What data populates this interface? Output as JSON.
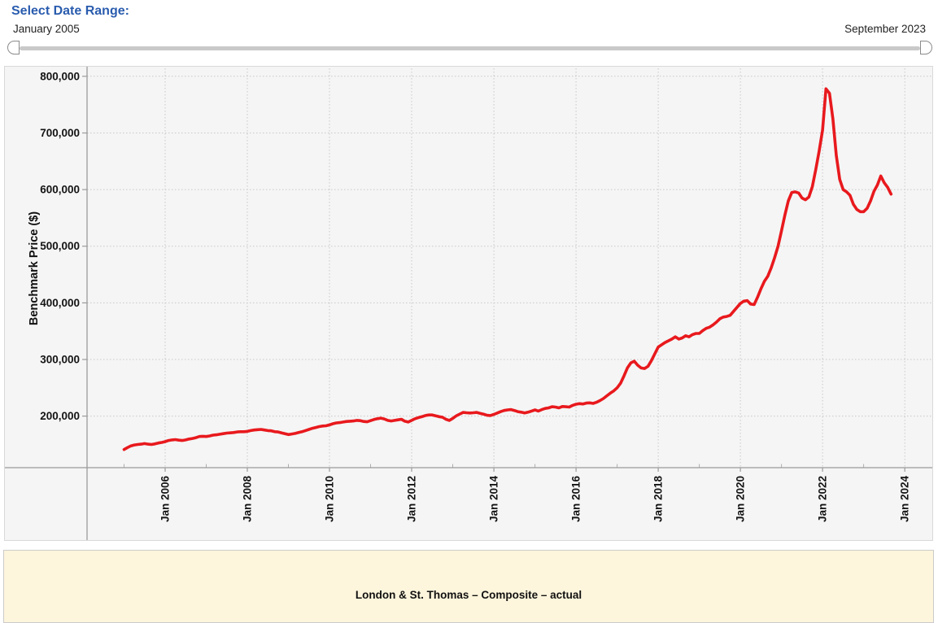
{
  "controls": {
    "title": "Select Date Range:",
    "range_start": "January 2005",
    "range_end": "September 2023"
  },
  "legend": {
    "label": "London & St. Thomas – Composite – actual"
  },
  "colors": {
    "accent_blue": "#2a5cae",
    "line_red": "#e8191d",
    "widget_bg": "#f5f5f5",
    "legend_bg": "#fdf5dc",
    "axis": "#9b9b9b",
    "grid": "#c8c8c8",
    "tick_label": "#141414"
  },
  "chart_data": {
    "type": "line",
    "title": "",
    "xlabel": "",
    "ylabel": "Benchmark Price ($)",
    "grid": "dotted",
    "legend_position": "below",
    "x_unit": "month",
    "x_start": "2005-01",
    "x_end": "2023-09",
    "xlim_years": [
      2004.1,
      2024.67
    ],
    "ylim": [
      109000,
      817000
    ],
    "x_major_ticks": [
      {
        "year": 2006,
        "label": "Jan 2006"
      },
      {
        "year": 2008,
        "label": "Jan 2008"
      },
      {
        "year": 2010,
        "label": "Jan 2010"
      },
      {
        "year": 2012,
        "label": "Jan 2012"
      },
      {
        "year": 2014,
        "label": "Jan 2014"
      },
      {
        "year": 2016,
        "label": "Jan 2016"
      },
      {
        "year": 2018,
        "label": "Jan 2018"
      },
      {
        "year": 2020,
        "label": "Jan 2020"
      },
      {
        "year": 2022,
        "label": "Jan 2022"
      },
      {
        "year": 2024,
        "label": "Jan 2024"
      }
    ],
    "x_minor_tick_years": [
      2005,
      2007,
      2009,
      2011,
      2013,
      2015,
      2017,
      2019,
      2021,
      2023
    ],
    "y_major_ticks": [
      {
        "value": 200000,
        "label": "200,000"
      },
      {
        "value": 300000,
        "label": "300,000"
      },
      {
        "value": 400000,
        "label": "400,000"
      },
      {
        "value": 500000,
        "label": "500,000"
      },
      {
        "value": 600000,
        "label": "600,000"
      },
      {
        "value": 700000,
        "label": "700,000"
      },
      {
        "value": 800000,
        "label": "800,000"
      }
    ],
    "series": [
      {
        "name": "London & St. Thomas – Composite – actual",
        "color": "#e8191d",
        "frequency": "monthly",
        "first_point": "2005-01",
        "last_point": "2023-09",
        "values": [
          141000,
          144500,
          147500,
          149000,
          150000,
          150500,
          151500,
          150500,
          150000,
          151000,
          152500,
          153500,
          155000,
          157000,
          158000,
          158500,
          157500,
          157000,
          158000,
          159500,
          160500,
          162000,
          164000,
          164500,
          164000,
          165000,
          166500,
          167000,
          168000,
          169000,
          170000,
          170500,
          171000,
          172000,
          172500,
          172500,
          173000,
          174500,
          175500,
          176000,
          176500,
          175500,
          174500,
          174000,
          172500,
          172000,
          170500,
          169000,
          167500,
          168500,
          169500,
          171000,
          172500,
          174500,
          176500,
          178500,
          180000,
          181500,
          182500,
          183000,
          184500,
          186500,
          188000,
          188500,
          189500,
          190500,
          191000,
          191500,
          192500,
          192000,
          190500,
          190000,
          192000,
          194000,
          195500,
          196500,
          195000,
          192500,
          191500,
          192500,
          193500,
          194500,
          191000,
          189500,
          192500,
          195500,
          197500,
          199000,
          201000,
          202000,
          202000,
          200500,
          199000,
          198000,
          194500,
          192500,
          196000,
          200500,
          203500,
          206500,
          206000,
          205500,
          206000,
          206500,
          205000,
          203500,
          201500,
          201000,
          203000,
          205500,
          208000,
          210000,
          211000,
          211500,
          210000,
          208000,
          207000,
          205500,
          207000,
          209000,
          211000,
          209000,
          211500,
          213500,
          214500,
          216500,
          216000,
          214500,
          217000,
          216500,
          216000,
          219000,
          221000,
          222000,
          221500,
          223000,
          223500,
          222500,
          224500,
          227500,
          231000,
          236000,
          240500,
          244500,
          250000,
          258000,
          271000,
          285000,
          294000,
          297000,
          290000,
          285000,
          284000,
          288000,
          298000,
          310000,
          322000,
          326000,
          330000,
          333000,
          336000,
          340000,
          336000,
          338000,
          342000,
          340000,
          344000,
          346000,
          346000,
          351000,
          355000,
          357000,
          361000,
          366000,
          372000,
          375000,
          376000,
          378000,
          385000,
          392000,
          399000,
          403000,
          404000,
          398000,
          397000,
          410000,
          425000,
          438000,
          447000,
          462000,
          480000,
          500000,
          527000,
          555000,
          580000,
          595000,
          596000,
          594000,
          585000,
          582000,
          587000,
          605000,
          635000,
          668000,
          705000,
          778000,
          770000,
          725000,
          660000,
          618000,
          600000,
          596000,
          590000,
          574000,
          565000,
          561000,
          561000,
          567000,
          580000,
          597000,
          608000,
          624000,
          612000,
          604000,
          592000
        ]
      }
    ]
  }
}
